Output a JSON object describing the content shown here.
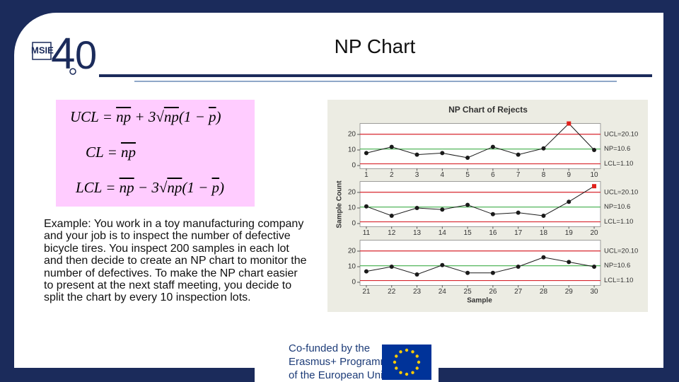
{
  "header": {
    "title": "NP Chart"
  },
  "logo": {
    "name": "MSIE",
    "major": "4",
    "minor": "0"
  },
  "formulas": [
    {
      "lhs": "UCL",
      "rhs": [
        {
          "t": " = "
        },
        {
          "t": "np",
          "bar": true
        },
        {
          "t": " + 3"
        },
        {
          "t": "√"
        },
        {
          "t": "np",
          "bar": true
        },
        {
          "t": "(1 − "
        },
        {
          "t": "p",
          "bar": true
        },
        {
          "t": ")"
        }
      ]
    },
    {
      "lhs": "CL",
      "rhs": [
        {
          "t": " = "
        },
        {
          "t": "np",
          "bar": true
        }
      ]
    },
    {
      "lhs": "LCL",
      "rhs": [
        {
          "t": " = "
        },
        {
          "t": "np",
          "bar": true
        },
        {
          "t": " − 3"
        },
        {
          "t": "√"
        },
        {
          "t": "np",
          "bar": true
        },
        {
          "t": "(1 − "
        },
        {
          "t": "p",
          "bar": true
        },
        {
          "t": ")"
        }
      ]
    }
  ],
  "body": "Example: You work in a toy manufacturing company and your job is to inspect the number of defective bicycle tires. You inspect 200 samples in each lot and then decide to create an NP chart to monitor the number of defectives. To make the NP chart easier to present at the next staff meeting, you decide to split the chart by every 10 inspection lots.",
  "footer": {
    "lines": [
      "Co-funded by the",
      "Erasmus+ Programme",
      "of the European Union"
    ]
  },
  "chart_data": {
    "type": "line",
    "title": "NP Chart of Rejects",
    "ylabel": "Sample Count",
    "xlabel": "Sample",
    "ylim": [
      -2,
      27
    ],
    "yticks": [
      0,
      10,
      20
    ],
    "line_color": "#1a1a1a",
    "out_color": "#e0201b",
    "limits": [
      {
        "label": "UCL=20.10",
        "value": 20.1,
        "color": "#d7262e"
      },
      {
        "label": "NP=10.6",
        "value": 10.6,
        "color": "#3fae49"
      },
      {
        "label": "LCL=1.10",
        "value": 1.1,
        "color": "#d7262e"
      }
    ],
    "panels": [
      {
        "x": [
          1,
          2,
          3,
          4,
          5,
          6,
          7,
          8,
          9,
          10
        ],
        "xlim": [
          0.75,
          10.25
        ],
        "values": [
          8,
          12,
          7,
          8,
          5,
          12,
          7,
          11,
          27,
          10
        ]
      },
      {
        "x": [
          11,
          12,
          13,
          14,
          15,
          16,
          17,
          18,
          19,
          20
        ],
        "xlim": [
          10.75,
          20.25
        ],
        "values": [
          11,
          5,
          10,
          9,
          12,
          6,
          7,
          5,
          14,
          24
        ]
      },
      {
        "x": [
          21,
          22,
          23,
          24,
          25,
          26,
          27,
          28,
          29,
          30
        ],
        "xlim": [
          20.75,
          30.25
        ],
        "values": [
          7,
          10,
          5,
          11,
          6,
          6,
          10,
          16,
          13,
          10
        ]
      }
    ]
  }
}
